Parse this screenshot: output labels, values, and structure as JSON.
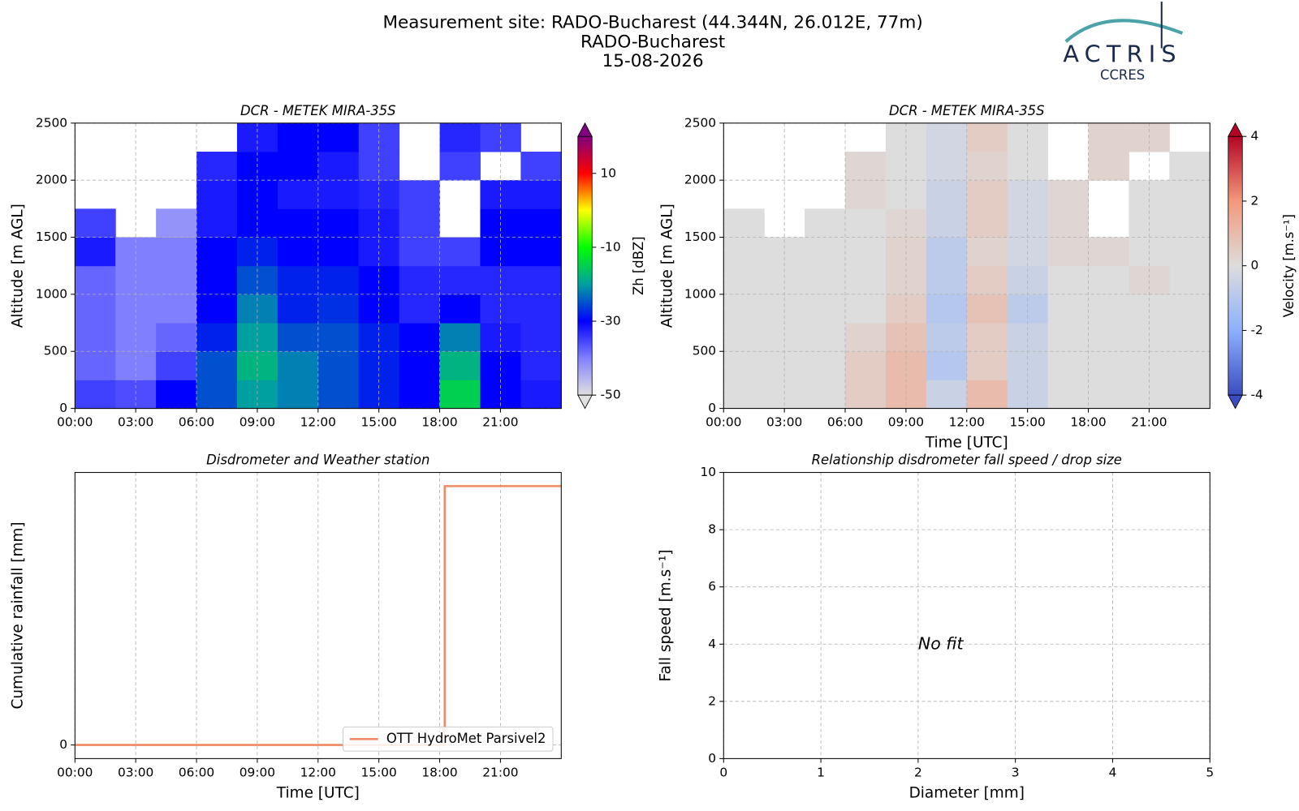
{
  "header": {
    "title_lines": [
      "Measurement site: RADO-Bucharest (44.344N, 26.012E, 77m)",
      "RADO-Bucharest",
      "15-08-2026"
    ],
    "logo_text": "ACTRIS",
    "logo_subtext": "CCRES"
  },
  "chart_data": [
    {
      "type": "heatmap",
      "title": "DCR - METEK MIRA-35S",
      "ylabel": "Altitude [m AGL]",
      "x_edges": [
        0,
        2,
        4,
        6,
        8,
        10,
        12,
        14,
        16,
        18,
        20,
        22,
        24
      ],
      "y_edges": [
        0,
        250,
        500,
        750,
        1000,
        1250,
        1500,
        1750,
        2000,
        2250,
        2500
      ],
      "values": [
        [
          -35,
          -36,
          -30,
          -25,
          -20,
          -22,
          -25,
          -28,
          -30,
          -15,
          -30,
          -32
        ],
        [
          -38,
          -40,
          -35,
          -25,
          -18,
          -22,
          -25,
          -28,
          -30,
          -18,
          -30,
          -33
        ],
        [
          -38,
          -40,
          -38,
          -28,
          -20,
          -25,
          -25,
          -28,
          -30,
          -22,
          -32,
          -33
        ],
        [
          -38,
          -40,
          -40,
          -30,
          -22,
          -28,
          -27,
          -30,
          -33,
          -30,
          -33,
          -33
        ],
        [
          -38,
          -40,
          -40,
          -30,
          -25,
          -28,
          -28,
          -30,
          -33,
          -33,
          -33,
          -33
        ],
        [
          -32,
          -40,
          -40,
          -30,
          -28,
          -30,
          -30,
          -32,
          -35,
          -35,
          -30,
          -30
        ],
        [
          -35,
          null,
          -42,
          -32,
          -30,
          -30,
          -30,
          -32,
          -35,
          null,
          -30,
          -30
        ],
        [
          null,
          null,
          null,
          -32,
          -30,
          -32,
          -32,
          -33,
          -35,
          null,
          -32,
          -32
        ],
        [
          null,
          null,
          null,
          -33,
          -30,
          -30,
          -32,
          -35,
          null,
          -35,
          null,
          -35
        ],
        [
          null,
          null,
          null,
          null,
          -32,
          -30,
          -30,
          -35,
          null,
          -33,
          -35,
          null
        ]
      ],
      "xlim": [
        0,
        24
      ],
      "xticks": [
        {
          "value": 0,
          "label": "00:00"
        },
        {
          "value": 3,
          "label": "03:00"
        },
        {
          "value": 6,
          "label": "06:00"
        },
        {
          "value": 9,
          "label": "09:00"
        },
        {
          "value": 12,
          "label": "12:00"
        },
        {
          "value": 15,
          "label": "15:00"
        },
        {
          "value": 18,
          "label": "18:00"
        },
        {
          "value": 21,
          "label": "21:00"
        }
      ],
      "ylim": [
        0,
        2500
      ],
      "yticks": [
        0,
        500,
        1000,
        1500,
        2000,
        2500
      ],
      "grid": true,
      "colorbar_label": "Zh [dBZ]",
      "clim": [
        -50,
        20
      ],
      "colorbar_ticks": [
        -50,
        -30,
        -10,
        10
      ],
      "colormap": [
        "#e0e0e0",
        "#8080ff",
        "#0000ff",
        "#00a0a0",
        "#00ff00",
        "#ffff00",
        "#ff0000",
        "#800080"
      ]
    },
    {
      "type": "heatmap",
      "title": "DCR - METEK MIRA-35S",
      "ylabel": "Altitude [m AGL]",
      "xlabel": "Time [UTC]",
      "x_edges": [
        0,
        2,
        4,
        6,
        8,
        10,
        12,
        14,
        16,
        18,
        20,
        22,
        24
      ],
      "y_edges": [
        0,
        250,
        500,
        750,
        1000,
        1250,
        1500,
        1750,
        2000,
        2250,
        2500
      ],
      "values": [
        [
          0,
          0,
          0,
          0.5,
          1,
          -0.5,
          1,
          -0.5,
          0,
          0,
          0,
          0
        ],
        [
          0,
          0,
          0,
          0.5,
          1,
          -1,
          0.5,
          -0.5,
          0,
          0,
          0,
          0
        ],
        [
          0,
          0,
          0,
          0.3,
          0.8,
          -0.8,
          0.5,
          -0.5,
          0,
          0,
          0,
          0
        ],
        [
          0,
          0,
          0,
          0,
          0.5,
          -1,
          0.8,
          -0.8,
          0,
          0,
          0,
          0
        ],
        [
          0,
          0,
          0,
          0,
          0.3,
          -0.8,
          0.5,
          -0.5,
          0,
          0,
          0.2,
          0
        ],
        [
          0,
          0,
          0,
          0,
          0.3,
          -0.8,
          0.3,
          -0.3,
          0.2,
          0.2,
          0,
          0
        ],
        [
          0,
          null,
          0,
          0,
          0.2,
          -0.5,
          0.5,
          -0.3,
          0.2,
          null,
          0,
          0
        ],
        [
          null,
          null,
          null,
          0.2,
          0,
          -0.5,
          0.5,
          -0.3,
          0.2,
          null,
          0,
          0
        ],
        [
          null,
          null,
          null,
          0.2,
          0,
          -0.3,
          0.3,
          0,
          null,
          0.3,
          null,
          0
        ],
        [
          null,
          null,
          null,
          null,
          0,
          -0.3,
          0.5,
          0,
          null,
          0.3,
          0.3,
          null
        ]
      ],
      "xlim": [
        0,
        24
      ],
      "xticks": [
        {
          "value": 0,
          "label": "00:00"
        },
        {
          "value": 3,
          "label": "03:00"
        },
        {
          "value": 6,
          "label": "06:00"
        },
        {
          "value": 9,
          "label": "09:00"
        },
        {
          "value": 12,
          "label": "12:00"
        },
        {
          "value": 15,
          "label": "15:00"
        },
        {
          "value": 18,
          "label": "18:00"
        },
        {
          "value": 21,
          "label": "21:00"
        }
      ],
      "ylim": [
        0,
        2500
      ],
      "yticks": [
        0,
        500,
        1000,
        1500,
        2000,
        2500
      ],
      "grid": true,
      "colorbar_label": "Velocity [m.s⁻¹]",
      "clim": [
        -4,
        4
      ],
      "colorbar_ticks": [
        -4,
        -2,
        0,
        2,
        4
      ],
      "colormap": [
        "#3b4cc0",
        "#8db0fe",
        "#dddddd",
        "#f4987a",
        "#b40426"
      ]
    },
    {
      "type": "line",
      "title": "Disdrometer and Weather station",
      "ylabel": "Cumulative rainfall [mm]",
      "xlabel": "Time [UTC]",
      "x": [
        0,
        18.25,
        18.25,
        24
      ],
      "series": [
        {
          "name": "OTT HydroMet Parsivel2",
          "color": "#ef8a62",
          "values": [
            0,
            0,
            0.95,
            0.95
          ]
        }
      ],
      "xlim": [
        0,
        24
      ],
      "xticks": [
        {
          "value": 0,
          "label": "00:00"
        },
        {
          "value": 3,
          "label": "03:00"
        },
        {
          "value": 6,
          "label": "06:00"
        },
        {
          "value": 9,
          "label": "09:00"
        },
        {
          "value": 12,
          "label": "12:00"
        },
        {
          "value": 15,
          "label": "15:00"
        },
        {
          "value": 18,
          "label": "18:00"
        },
        {
          "value": 21,
          "label": "21:00"
        }
      ],
      "ylim": [
        -0.05,
        1
      ],
      "yticks": [
        0
      ],
      "grid": true,
      "legend": "lower right"
    },
    {
      "type": "scatter",
      "title": "Relationship disdrometer fall speed / drop size",
      "ylabel": "Fall speed [m.s⁻¹]",
      "xlabel": "Diameter [mm]",
      "xlim": [
        0,
        5
      ],
      "xticks": [
        0,
        1,
        2,
        3,
        4,
        5
      ],
      "ylim": [
        0,
        10
      ],
      "yticks": [
        0,
        2,
        4,
        6,
        8,
        10
      ],
      "grid": true,
      "annotations": [
        {
          "text": "No fit",
          "x": 2,
          "y": 4
        }
      ]
    }
  ]
}
